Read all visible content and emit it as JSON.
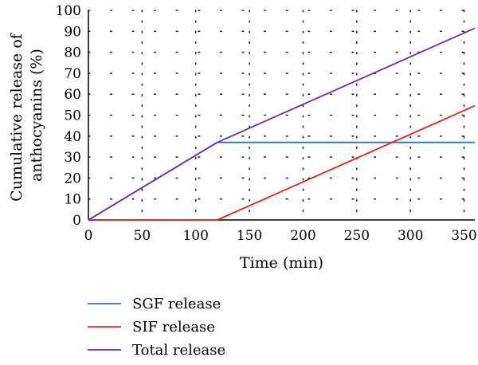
{
  "chart_data": {
    "type": "line",
    "xlabel": "Time (min)",
    "ylabel_lines": [
      "Cumulative release of",
      "anthocyanins (%)"
    ],
    "xlim": [
      0,
      360
    ],
    "ylim": [
      0,
      100
    ],
    "xticks": [
      0,
      50,
      100,
      150,
      200,
      250,
      300,
      350
    ],
    "yticks": [
      0,
      10,
      20,
      30,
      40,
      50,
      60,
      70,
      80,
      90,
      100
    ],
    "grid": "dotted",
    "legend_position": "bottom",
    "series": [
      {
        "name": "SGF release",
        "color": "#2e75b6",
        "points": [
          [
            0,
            0
          ],
          [
            120,
            37
          ],
          [
            360,
            37
          ]
        ]
      },
      {
        "name": "SIF release",
        "color": "#e8231b",
        "points": [
          [
            0,
            0
          ],
          [
            120,
            0
          ],
          [
            360,
            54.5
          ]
        ]
      },
      {
        "name": "Total release",
        "color": "#7030a0",
        "points": [
          [
            0,
            0
          ],
          [
            120,
            37
          ],
          [
            360,
            91.5
          ]
        ]
      }
    ]
  }
}
